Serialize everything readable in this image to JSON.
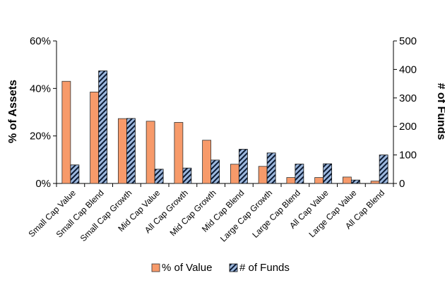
{
  "chart_data": {
    "type": "bar",
    "categories": [
      "Small Cap Value",
      "Small Cap Blend",
      "Small Cap Growth",
      "Mid Cap Value",
      "All Cap Growth",
      "Mid Cap Growth",
      "Mid Cap Blend",
      "Large Cap Growth",
      "Large Cap Blend",
      "All Cap Value",
      "Large Cap Value",
      "All Cap Blend"
    ],
    "series": [
      {
        "name": "% of Value",
        "axis": "left",
        "color": "#F79A6A",
        "pattern": "solid",
        "values": [
          43.0,
          38.5,
          27.3,
          26.2,
          25.7,
          18.2,
          8.1,
          7.2,
          2.5,
          2.5,
          2.7,
          1.0
        ]
      },
      {
        "name": "# of Funds",
        "axis": "right",
        "color": "#9DB8DE",
        "pattern": "hatched",
        "values": [
          65,
          395,
          228,
          50,
          54,
          82,
          120,
          107,
          68,
          69,
          12,
          100
        ]
      }
    ],
    "ylabel": "% of Assets",
    "ylabel_right": "# of Funds",
    "ylim": [
      0,
      60
    ],
    "ylim_right": [
      0,
      500
    ],
    "yticks": [
      "0%",
      "20%",
      "40%",
      "60%"
    ],
    "yticks_right": [
      "0",
      "100",
      "200",
      "300",
      "400",
      "500"
    ],
    "legend": "bottom",
    "grid": false
  }
}
